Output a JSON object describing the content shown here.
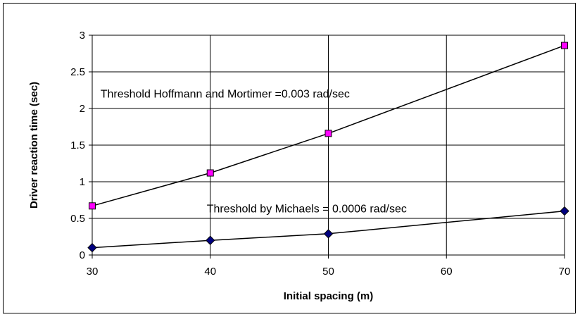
{
  "chart_data": {
    "type": "line",
    "title": "",
    "xlabel": "Initial spacing (m)",
    "ylabel": "Driver reaction time (sec)",
    "xlim": [
      30,
      70
    ],
    "ylim": [
      0,
      3
    ],
    "x_ticks": [
      30,
      40,
      50,
      60,
      70
    ],
    "y_ticks": [
      0,
      0.5,
      1,
      1.5,
      2,
      2.5,
      3
    ],
    "grid": true,
    "legend": "none",
    "series": [
      {
        "marker": "square",
        "marker_color": "#ff00ff",
        "line_color": "#000000",
        "x": [
          30,
          40,
          50,
          70
        ],
        "y": [
          0.67,
          1.12,
          1.66,
          2.86
        ]
      },
      {
        "marker": "diamond",
        "marker_color": "#000080",
        "line_color": "#000000",
        "x": [
          30,
          40,
          50,
          70
        ],
        "y": [
          0.1,
          0.2,
          0.29,
          0.6
        ]
      }
    ],
    "annotations": [
      {
        "text": "Threshold Hoffmann and Mortimer =0.003 rad/sec",
        "x": 30.7,
        "y": 2.15
      },
      {
        "text": "Threshold by Michaels = 0.0006 rad/sec",
        "x": 39.7,
        "y": 0.58
      }
    ]
  }
}
